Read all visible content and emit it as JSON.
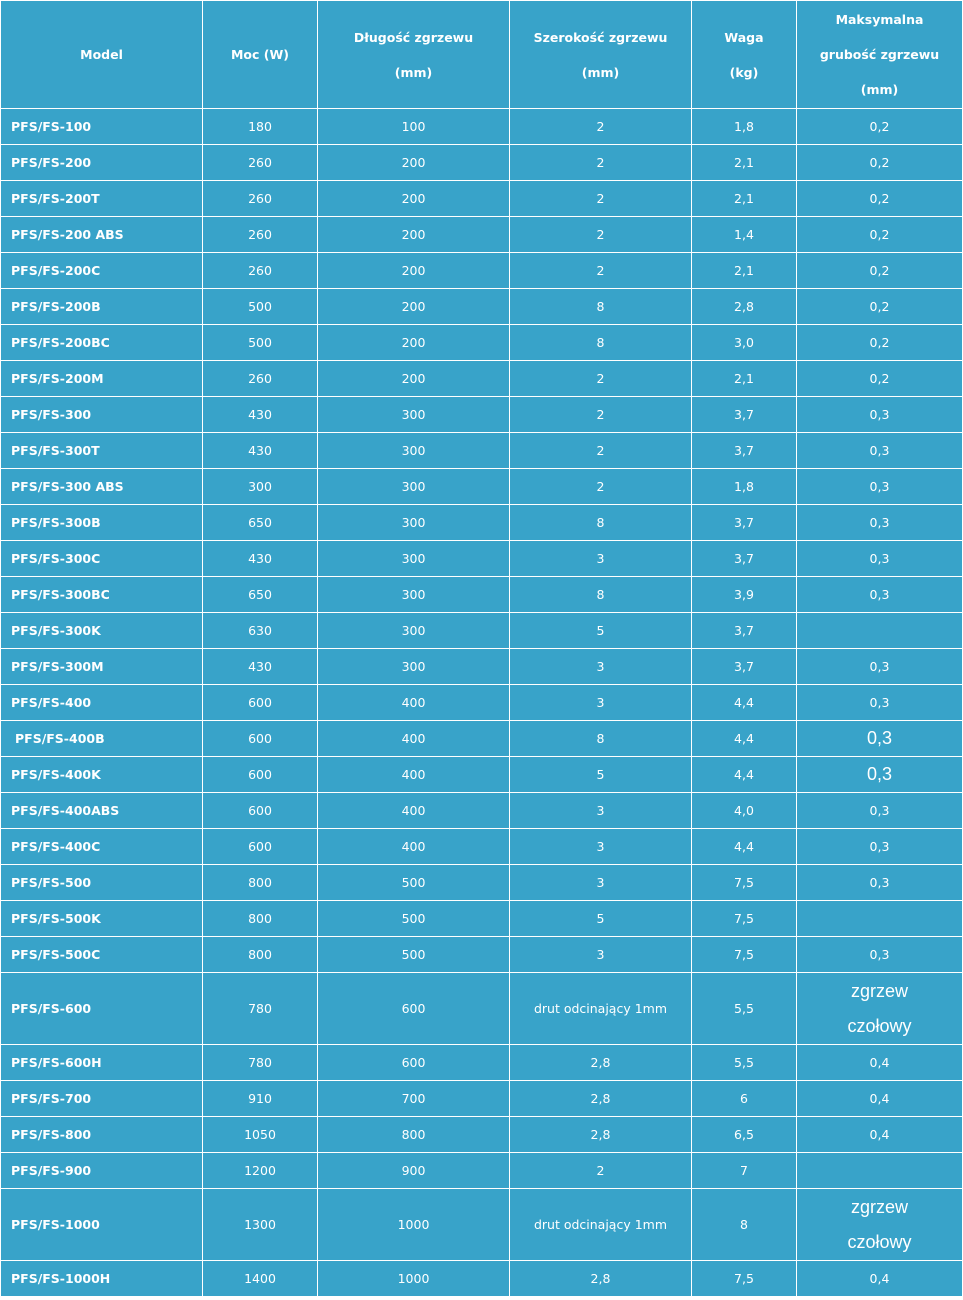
{
  "headers": {
    "model": [
      "Model"
    ],
    "power": [
      "Moc (W)"
    ],
    "length": [
      "Długość zgrzewu",
      "(mm)"
    ],
    "width": [
      "Szerokość zgrzewu",
      "(mm)"
    ],
    "weight": [
      "Waga",
      "(kg)"
    ],
    "thickness": [
      "Maksymalna",
      "grubość zgrzewu",
      "(mm)"
    ]
  },
  "rows": [
    {
      "model": "PFS/FS-100",
      "power": "180",
      "length": "100",
      "width": "2",
      "weight": "1,8",
      "thickness": "0,2"
    },
    {
      "model": "PFS/FS-200",
      "power": "260",
      "length": "200",
      "width": "2",
      "weight": "2,1",
      "thickness": "0,2"
    },
    {
      "model": "PFS/FS-200T",
      "power": "260",
      "length": "200",
      "width": "2",
      "weight": "2,1",
      "thickness": "0,2"
    },
    {
      "model": "PFS/FS-200 ABS",
      "power": "260",
      "length": "200",
      "width": "2",
      "weight": "1,4",
      "thickness": "0,2"
    },
    {
      "model": "PFS/FS-200C",
      "power": "260",
      "length": "200",
      "width": "2",
      "weight": "2,1",
      "thickness": "0,2"
    },
    {
      "model": "PFS/FS-200B",
      "power": "500",
      "length": "200",
      "width": "8",
      "weight": "2,8",
      "thickness": "0,2"
    },
    {
      "model": "PFS/FS-200BC",
      "power": "500",
      "length": "200",
      "width": "8",
      "weight": "3,0",
      "thickness": "0,2"
    },
    {
      "model": "PFS/FS-200M",
      "power": "260",
      "length": "200",
      "width": "2",
      "weight": "2,1",
      "thickness": "0,2"
    },
    {
      "model": "PFS/FS-300",
      "power": "430",
      "length": "300",
      "width": "2",
      "weight": "3,7",
      "thickness": "0,3"
    },
    {
      "model": "PFS/FS-300T",
      "power": "430",
      "length": "300",
      "width": "2",
      "weight": "3,7",
      "thickness": "0,3"
    },
    {
      "model": "PFS/FS-300 ABS",
      "power": "300",
      "length": "300",
      "width": "2",
      "weight": "1,8",
      "thickness": "0,3"
    },
    {
      "model": "PFS/FS-300B",
      "power": "650",
      "length": "300",
      "width": "8",
      "weight": "3,7",
      "thickness": "0,3"
    },
    {
      "model": "PFS/FS-300C",
      "power": "430",
      "length": "300",
      "width": "3",
      "weight": "3,7",
      "thickness": "0,3"
    },
    {
      "model": "PFS/FS-300BC",
      "power": "650",
      "length": "300",
      "width": "8",
      "weight": "3,9",
      "thickness": "0,3"
    },
    {
      "model": "PFS/FS-300K",
      "power": "630",
      "length": "300",
      "width": "5",
      "weight": "3,7",
      "thickness": ""
    },
    {
      "model": "PFS/FS-300M",
      "power": "430",
      "length": "300",
      "width": "3",
      "weight": "3,7",
      "thickness": "0,3"
    },
    {
      "model": "PFS/FS-400",
      "power": "600",
      "length": "400",
      "width": "3",
      "weight": "4,4",
      "thickness": "0,3"
    },
    {
      "model": "PFS/FS-400B",
      "power": "600",
      "length": "400",
      "width": "8",
      "weight": "4,4",
      "thickness": "0,3"
    },
    {
      "model": "PFS/FS-400K",
      "power": "600",
      "length": "400",
      "width": "5",
      "weight": "4,4",
      "thickness": "0,3"
    },
    {
      "model": "PFS/FS-400ABS",
      "power": "600",
      "length": "400",
      "width": "3",
      "weight": "4,0",
      "thickness": "0,3"
    },
    {
      "model": "PFS/FS-400C",
      "power": "600",
      "length": "400",
      "width": "3",
      "weight": "4,4",
      "thickness": "0,3"
    },
    {
      "model": "PFS/FS-500",
      "power": "800",
      "length": "500",
      "width": "3",
      "weight": "7,5",
      "thickness": "0,3"
    },
    {
      "model": "PFS/FS-500K",
      "power": "800",
      "length": "500",
      "width": "5",
      "weight": "7,5",
      "thickness": ""
    },
    {
      "model": "PFS/FS-500C",
      "power": "800",
      "length": "500",
      "width": "3",
      "weight": "7,5",
      "thickness": "0,3"
    },
    {
      "model": "PFS/FS-600",
      "power": "780",
      "length": "600",
      "width": "drut odcinający 1mm",
      "weight": "5,5",
      "thickness": [
        "zgrzew",
        "czołowy"
      ]
    },
    {
      "model": "PFS/FS-600H",
      "power": "780",
      "length": "600",
      "width": "2,8",
      "weight": "5,5",
      "thickness": "0,4"
    },
    {
      "model": "PFS/FS-700",
      "power": "910",
      "length": "700",
      "width": "2,8",
      "weight": "6",
      "thickness": "0,4"
    },
    {
      "model": "PFS/FS-800",
      "power": "1050",
      "length": "800",
      "width": "2,8",
      "weight": "6,5",
      "thickness": "0,4"
    },
    {
      "model": "PFS/FS-900",
      "power": "1200",
      "length": "900",
      "width": "2",
      "weight": "7",
      "thickness": ""
    },
    {
      "model": "PFS/FS-1000",
      "power": "1300",
      "length": "1000",
      "width": "drut odcinający 1mm",
      "weight": "8",
      "thickness": [
        "zgrzew",
        "czołowy"
      ]
    },
    {
      "model": "PFS/FS-1000H",
      "power": "1400",
      "length": "1000",
      "width": "2,8",
      "weight": "7,5",
      "thickness": "0,4"
    }
  ]
}
